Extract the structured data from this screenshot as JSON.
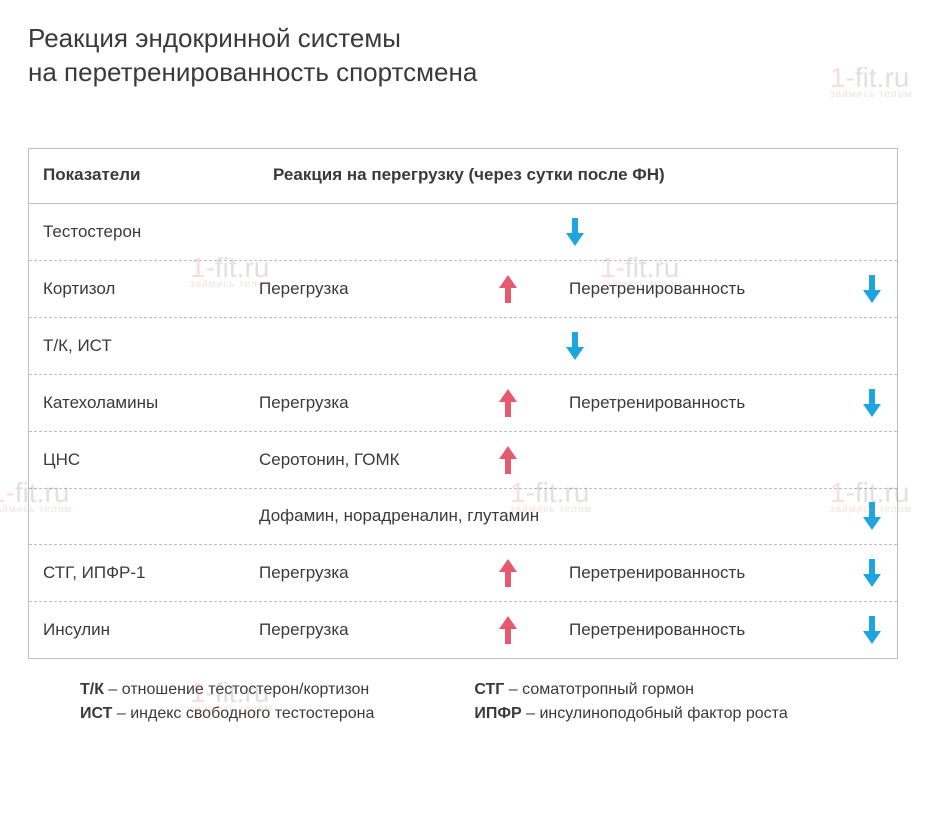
{
  "title_line1": "Реакция эндокринной системы",
  "title_line2": "на перетренированность спортсмена",
  "colors": {
    "arrow_up": "#e55a6e",
    "arrow_down": "#1ea5df",
    "border": "#bfbfbf",
    "text": "#3a3a3a",
    "wm_pink": "#e07a8a",
    "wm_gray": "#888888"
  },
  "table": {
    "header_col1": "Показатели",
    "header_col2": "Реакция на перегрузку (через сутки после ФН)",
    "rows": [
      {
        "indicator": "Тестостерон",
        "lines": [
          {
            "type": "single_center_down"
          }
        ]
      },
      {
        "indicator": "Кортизол",
        "lines": [
          {
            "type": "pair",
            "label1": "Перегрузка",
            "dir1": "up",
            "label2": "Перетренированность",
            "dir2": "down"
          }
        ]
      },
      {
        "indicator": "Т/К, ИСТ",
        "lines": [
          {
            "type": "single_center_down"
          }
        ]
      },
      {
        "indicator": "Катехоламины",
        "lines": [
          {
            "type": "pair",
            "label1": "Перегрузка",
            "dir1": "up",
            "label2": "Перетренированность",
            "dir2": "down"
          }
        ]
      },
      {
        "indicator": "ЦНС",
        "lines": [
          {
            "type": "label_up",
            "label1": "Серотонин, ГОМК",
            "dir1": "up"
          },
          {
            "type": "label_right_down",
            "label1": "Дофамин, норадреналин, глутамин",
            "dir1": "down"
          }
        ]
      },
      {
        "indicator": "СТГ, ИПФР-1",
        "lines": [
          {
            "type": "pair",
            "label1": "Перегрузка",
            "dir1": "up",
            "label2": "Перетренированность",
            "dir2": "down"
          }
        ]
      },
      {
        "indicator": "Инсулин",
        "lines": [
          {
            "type": "pair",
            "label1": "Перегрузка",
            "dir1": "up",
            "label2": "Перетренированность",
            "dir2": "down"
          }
        ]
      }
    ]
  },
  "legend": {
    "col1": [
      {
        "abbr": "Т/К",
        "text": " – отношение тестостерон/кортизон"
      },
      {
        "abbr": "ИСТ",
        "text": " – индекс свободного тестостерона"
      }
    ],
    "col2": [
      {
        "abbr": "СТГ",
        "text": " – соматотропный гормон"
      },
      {
        "abbr": "ИПФР",
        "text": " – инсулиноподобный фактор роста"
      }
    ]
  },
  "watermark": {
    "big1": "1-",
    "big2": "fit.ru",
    "tag": "займись телом"
  }
}
